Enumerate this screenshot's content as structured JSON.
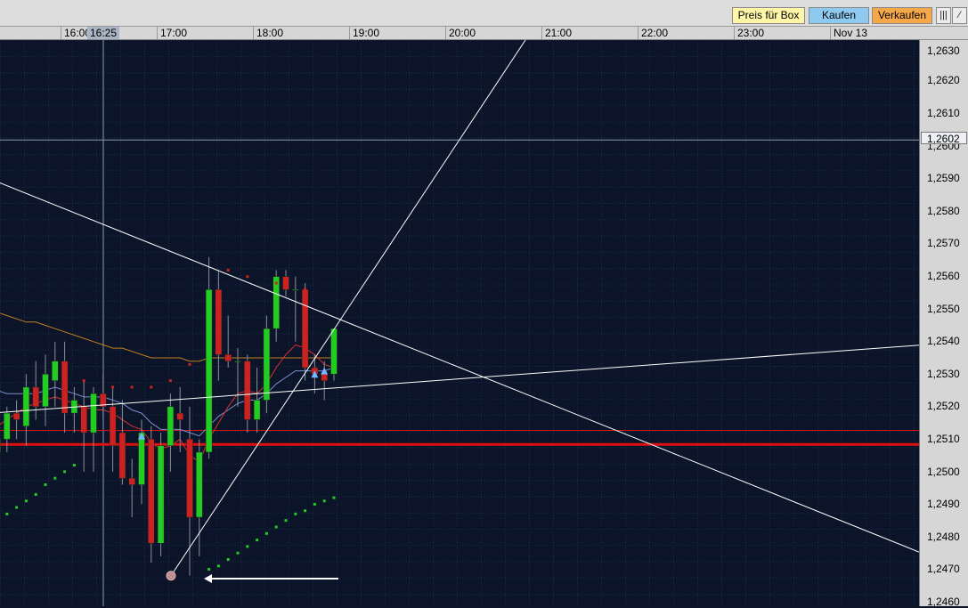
{
  "toolbar": {
    "box_label": "Preis für Box",
    "buy_label": "Kaufen",
    "sell_label": "Verkaufen"
  },
  "time_axis": {
    "ticks": [
      "16:00",
      "17:00",
      "18:00",
      "19:00",
      "20:00",
      "21:00",
      "22:00",
      "23:00",
      "Nov 13"
    ],
    "cursor_label": "16:25"
  },
  "price_axis": {
    "ticks": [
      "1,2630",
      "1,2620",
      "1,2610",
      "1,2600",
      "1,2590",
      "1,2580",
      "1,2570",
      "1,2560",
      "1,2550",
      "1,2540",
      "1,2530",
      "1,2520",
      "1,2510",
      "1,2500",
      "1,2490",
      "1,2480",
      "1,2470",
      "1,2460"
    ],
    "cursor_label": "1,2602"
  },
  "colors": {
    "background": "#0b1428",
    "grid": "#1c2c4a",
    "up": "#22cc22",
    "down": "#cc2222",
    "support_line": "#e01010",
    "trend_line": "#ffffff",
    "ma_short": "#e03030",
    "ma_mid": "#7a90d0",
    "ma_long": "#c08020",
    "psar": "#22cc22",
    "box_button": "#fff6a8",
    "buy_button": "#8ec9f0",
    "sell_button": "#f5a84a"
  },
  "chart_data": {
    "type": "candlestick",
    "ylim": [
      1.246,
      1.2635
    ],
    "candles": [
      {
        "o": 1.2506,
        "h": 1.2514,
        "l": 1.2502,
        "c": 1.251
      },
      {
        "o": 1.251,
        "h": 1.252,
        "l": 1.2506,
        "c": 1.2518
      },
      {
        "o": 1.2518,
        "h": 1.2522,
        "l": 1.251,
        "c": 1.2516
      },
      {
        "o": 1.2514,
        "h": 1.253,
        "l": 1.2508,
        "c": 1.2526
      },
      {
        "o": 1.2526,
        "h": 1.2534,
        "l": 1.2516,
        "c": 1.252
      },
      {
        "o": 1.252,
        "h": 1.2536,
        "l": 1.2514,
        "c": 1.253
      },
      {
        "o": 1.2528,
        "h": 1.254,
        "l": 1.252,
        "c": 1.2534
      },
      {
        "o": 1.2534,
        "h": 1.254,
        "l": 1.2512,
        "c": 1.2518
      },
      {
        "o": 1.2518,
        "h": 1.2526,
        "l": 1.2512,
        "c": 1.2522
      },
      {
        "o": 1.252,
        "h": 1.2528,
        "l": 1.25,
        "c": 1.2512
      },
      {
        "o": 1.2512,
        "h": 1.2526,
        "l": 1.25,
        "c": 1.2524
      },
      {
        "o": 1.2524,
        "h": 1.253,
        "l": 1.2516,
        "c": 1.252
      },
      {
        "o": 1.252,
        "h": 1.2526,
        "l": 1.25,
        "c": 1.2508
      },
      {
        "o": 1.2512,
        "h": 1.2522,
        "l": 1.2496,
        "c": 1.2498
      },
      {
        "o": 1.2498,
        "h": 1.2504,
        "l": 1.2486,
        "c": 1.2496
      },
      {
        "o": 1.2496,
        "h": 1.2516,
        "l": 1.249,
        "c": 1.2512
      },
      {
        "o": 1.251,
        "h": 1.2514,
        "l": 1.2472,
        "c": 1.2478
      },
      {
        "o": 1.2478,
        "h": 1.2512,
        "l": 1.2474,
        "c": 1.2508
      },
      {
        "o": 1.2508,
        "h": 1.2524,
        "l": 1.25,
        "c": 1.252
      },
      {
        "o": 1.2518,
        "h": 1.2526,
        "l": 1.2506,
        "c": 1.2516
      },
      {
        "o": 1.251,
        "h": 1.252,
        "l": 1.2468,
        "c": 1.2486
      },
      {
        "o": 1.2486,
        "h": 1.251,
        "l": 1.2474,
        "c": 1.2506
      },
      {
        "o": 1.2506,
        "h": 1.2566,
        "l": 1.2504,
        "c": 1.2556
      },
      {
        "o": 1.2556,
        "h": 1.2562,
        "l": 1.2528,
        "c": 1.2536
      },
      {
        "o": 1.2536,
        "h": 1.2548,
        "l": 1.2532,
        "c": 1.2534
      },
      {
        "o": 1.2534,
        "h": 1.2538,
        "l": 1.252,
        "c": 1.2534
      },
      {
        "o": 1.2534,
        "h": 1.2536,
        "l": 1.2512,
        "c": 1.2516
      },
      {
        "o": 1.2516,
        "h": 1.2532,
        "l": 1.2512,
        "c": 1.2522
      },
      {
        "o": 1.2522,
        "h": 1.2548,
        "l": 1.2518,
        "c": 1.2544
      },
      {
        "o": 1.2544,
        "h": 1.2562,
        "l": 1.254,
        "c": 1.256
      },
      {
        "o": 1.256,
        "h": 1.2562,
        "l": 1.2554,
        "c": 1.2556
      },
      {
        "o": 1.2556,
        "h": 1.256,
        "l": 1.254,
        "c": 1.2556
      },
      {
        "o": 1.2556,
        "h": 1.2558,
        "l": 1.2528,
        "c": 1.2532
      },
      {
        "o": 1.2532,
        "h": 1.2536,
        "l": 1.2524,
        "c": 1.253
      },
      {
        "o": 1.253,
        "h": 1.2534,
        "l": 1.2522,
        "c": 1.2528
      },
      {
        "o": 1.253,
        "h": 1.2544,
        "l": 1.2528,
        "c": 1.2544
      }
    ],
    "ma_short": [
      1.2514,
      1.2516,
      1.2518,
      1.252,
      1.2521,
      1.2522,
      1.2523,
      1.2522,
      1.2521,
      1.252,
      1.2519,
      1.2519,
      1.2518,
      1.2516,
      1.2514,
      1.2513,
      1.2509,
      1.2507,
      1.2508,
      1.251,
      1.2505,
      1.2503,
      1.251,
      1.2515,
      1.252,
      1.2524,
      1.2525,
      1.2524,
      1.2527,
      1.2532,
      1.2536,
      1.2539,
      1.2538,
      1.2536,
      1.2533,
      1.2532
    ],
    "ma_mid": [
      1.2525,
      1.2524,
      1.2524,
      1.2524,
      1.2524,
      1.2525,
      1.2526,
      1.2525,
      1.2524,
      1.2523,
      1.2523,
      1.2523,
      1.2522,
      1.2521,
      1.2519,
      1.2518,
      1.2515,
      1.2513,
      1.2513,
      1.2513,
      1.2512,
      1.2511,
      1.2514,
      1.2517,
      1.2519,
      1.2521,
      1.2522,
      1.2522,
      1.2524,
      1.2527,
      1.2529,
      1.2531,
      1.2531,
      1.2531,
      1.2531,
      1.2532
    ],
    "ma_long": [
      1.2549,
      1.2548,
      1.2547,
      1.2546,
      1.2546,
      1.2545,
      1.2544,
      1.2543,
      1.2542,
      1.2541,
      1.254,
      1.2539,
      1.2538,
      1.2538,
      1.2537,
      1.2536,
      1.2535,
      1.2535,
      1.2535,
      1.2535,
      1.2534,
      1.2534,
      1.2535,
      1.2535,
      1.2535,
      1.2535,
      1.2535,
      1.2535,
      1.2535,
      1.2535,
      1.2535,
      1.2535,
      1.2535,
      1.2535,
      1.2535,
      1.2535
    ],
    "psar_upper": [
      [
        9,
        1.2528
      ],
      [
        12,
        1.2526
      ],
      [
        14,
        1.2526
      ],
      [
        16,
        1.2526
      ],
      [
        18,
        1.2528
      ],
      [
        20,
        1.2533
      ],
      [
        24,
        1.2562
      ],
      [
        26,
        1.256
      ],
      [
        29,
        1.2558
      ],
      [
        32,
        1.2556
      ]
    ],
    "psar_lower": [
      [
        0,
        1.2486
      ],
      [
        1,
        1.2487
      ],
      [
        2,
        1.2489
      ],
      [
        3,
        1.2491
      ],
      [
        4,
        1.2493
      ],
      [
        5,
        1.2496
      ],
      [
        6,
        1.2498
      ],
      [
        7,
        1.25
      ],
      [
        8,
        1.2502
      ],
      [
        22,
        1.247
      ],
      [
        23,
        1.2471
      ],
      [
        24,
        1.2473
      ],
      [
        25,
        1.2475
      ],
      [
        26,
        1.2477
      ],
      [
        27,
        1.2479
      ],
      [
        28,
        1.2481
      ],
      [
        29,
        1.2483
      ],
      [
        30,
        1.2485
      ],
      [
        31,
        1.2487
      ],
      [
        32,
        1.2488
      ],
      [
        33,
        1.249
      ],
      [
        34,
        1.2491
      ],
      [
        35,
        1.2492
      ]
    ],
    "buy_markers": [
      [
        15,
        1.2511
      ],
      [
        33,
        1.253
      ],
      [
        34,
        1.2531
      ]
    ],
    "support_lines": [
      1.25084,
      1.25127
    ],
    "cursor_price": 1.2602,
    "low_point": {
      "index": 20,
      "price": 1.2468
    }
  }
}
